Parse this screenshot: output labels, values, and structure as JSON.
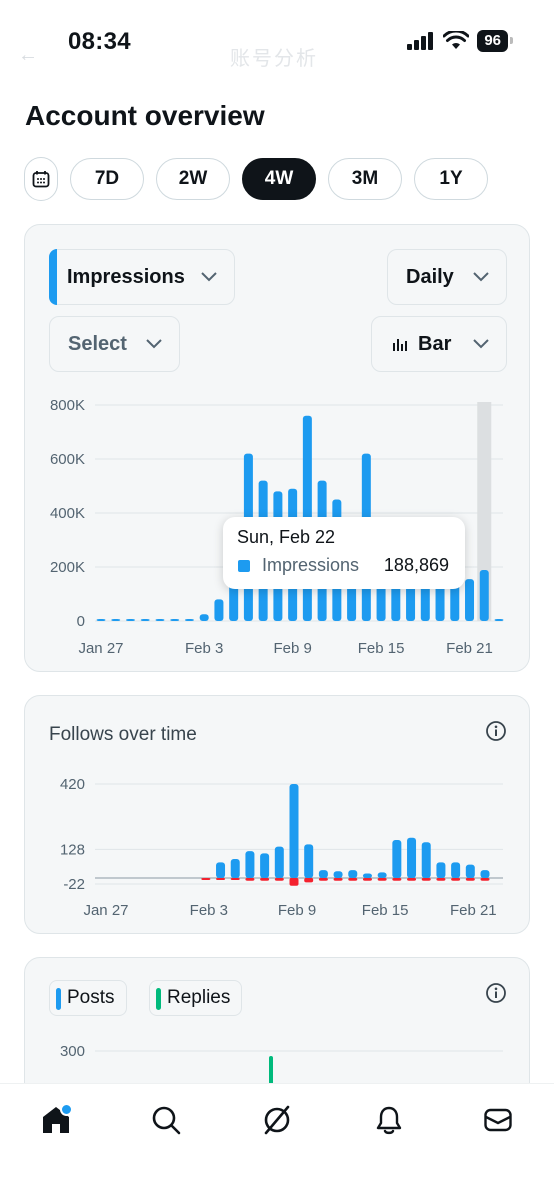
{
  "status": {
    "time": "08:34",
    "battery": "96"
  },
  "header": {
    "ghost_title": "账号分析",
    "back_icon": "arrow-left-icon"
  },
  "page": {
    "title": "Account overview"
  },
  "ranges": {
    "items": [
      "7D",
      "2W",
      "4W",
      "3M",
      "1Y"
    ],
    "active": "4W",
    "calendar_icon": "calendar-icon"
  },
  "impressions_card": {
    "metric": "Impressions",
    "period": "Daily",
    "compare": "Select",
    "chart_type": "Bar",
    "accent": "#1d9bf0",
    "tooltip": {
      "date": "Sun, Feb 22",
      "label": "Impressions",
      "value": "188,869"
    }
  },
  "follows_card": {
    "title": "Follows over time"
  },
  "posts_card": {
    "legend": [
      {
        "label": "Posts",
        "color": "#1d9bf0"
      },
      {
        "label": "Replies",
        "color": "#00ba7c"
      }
    ],
    "y_top_label": "300"
  },
  "chart_data": [
    {
      "type": "bar",
      "title": "Impressions",
      "x": [
        "Jan 27",
        "Jan 28",
        "Jan 29",
        "Jan 30",
        "Jan 31",
        "Feb 1",
        "Feb 2",
        "Feb 3",
        "Feb 4",
        "Feb 5",
        "Feb 6",
        "Feb 7",
        "Feb 8",
        "Feb 9",
        "Feb 10",
        "Feb 11",
        "Feb 12",
        "Feb 13",
        "Feb 14",
        "Feb 15",
        "Feb 16",
        "Feb 17",
        "Feb 18",
        "Feb 19",
        "Feb 20",
        "Feb 21",
        "Feb 22",
        "Feb 23"
      ],
      "xtick_labels": [
        "Jan 27",
        "Feb 3",
        "Feb 9",
        "Feb 15",
        "Feb 21"
      ],
      "series": [
        {
          "values": [
            1000,
            1000,
            0,
            1000,
            0,
            0,
            3000,
            25000,
            80000,
            150000,
            620000,
            520000,
            480000,
            490000,
            760000,
            520000,
            450000,
            150000,
            620000,
            150000,
            150000,
            150000,
            150000,
            150000,
            150000,
            155000,
            188869,
            2000
          ]
        }
      ],
      "yticks": [
        "0",
        "200K",
        "400K",
        "600K",
        "800K"
      ],
      "ylim": [
        0,
        800000
      ],
      "highlight": "Feb 22",
      "grid": true
    },
    {
      "type": "bar",
      "title": "Follows over time",
      "x": [
        "Jan 27",
        "Jan 28",
        "Jan 29",
        "Jan 30",
        "Jan 31",
        "Feb 1",
        "Feb 2",
        "Feb 3",
        "Feb 4",
        "Feb 5",
        "Feb 6",
        "Feb 7",
        "Feb 8",
        "Feb 9",
        "Feb 10",
        "Feb 11",
        "Feb 12",
        "Feb 13",
        "Feb 14",
        "Feb 15",
        "Feb 16",
        "Feb 17",
        "Feb 18",
        "Feb 19",
        "Feb 20",
        "Feb 21",
        "Feb 22"
      ],
      "xtick_labels": [
        "Jan 27",
        "Feb 3",
        "Feb 9",
        "Feb 15",
        "Feb 21"
      ],
      "series": [
        {
          "name": "gained",
          "values": [
            0,
            0,
            0,
            0,
            0,
            0,
            0,
            0,
            70,
            85,
            120,
            110,
            140,
            420,
            150,
            35,
            30,
            35,
            20,
            25,
            170,
            180,
            160,
            70,
            70,
            60,
            35
          ]
        },
        {
          "name": "lost",
          "values": [
            0,
            0,
            0,
            0,
            0,
            0,
            0,
            -3,
            -3,
            -3,
            -5,
            -5,
            -5,
            -14,
            -8,
            -5,
            -5,
            -5,
            -5,
            -5,
            -5,
            -5,
            -5,
            -5,
            -5,
            -5,
            -5
          ]
        }
      ],
      "yticks": [
        "-22",
        "128",
        "420"
      ],
      "ylim": [
        -22,
        420
      ],
      "grid": true
    },
    {
      "type": "bar",
      "series": [
        {
          "name": "Posts",
          "values": []
        },
        {
          "name": "Replies",
          "values": [
            290
          ]
        }
      ],
      "yticks": [
        "300"
      ]
    }
  ]
}
